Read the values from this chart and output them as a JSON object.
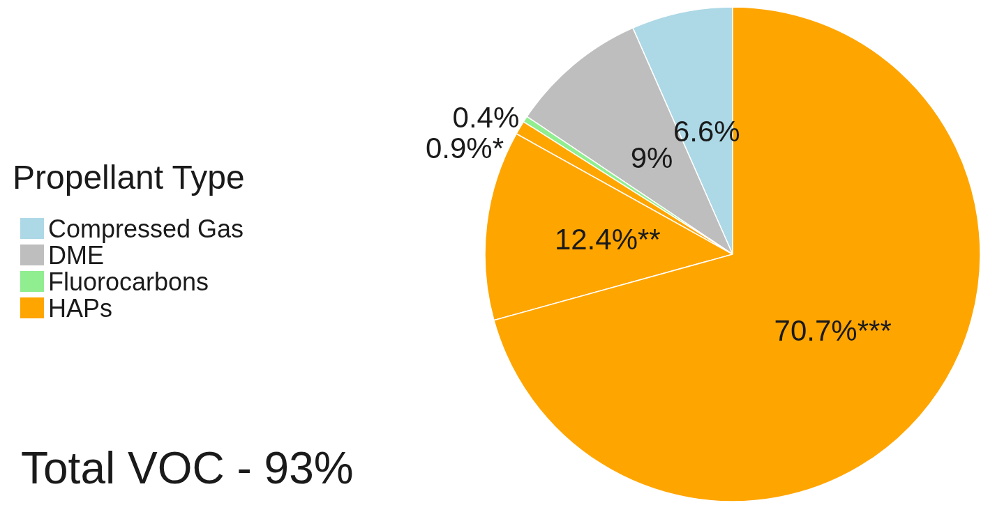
{
  "chart_data": {
    "type": "pie",
    "categories": [
      "Compressed Gas",
      "DME",
      "Fluorocarbons",
      "HAPs",
      null,
      null
    ],
    "values": [
      6.6,
      9,
      0.4,
      0.9,
      12.4,
      70.7
    ],
    "colors": [
      "#add8e6",
      "#bebebe",
      "#90ee90",
      "#ffa500",
      "#ffa500",
      "#ffa500"
    ],
    "value_labels": [
      "6.6%",
      "9%",
      "0.4%",
      "0.9%*",
      "12.4%**",
      "70.7%***"
    ],
    "legend_title": "Propellant Type",
    "legend": "left",
    "annotations": [
      "Total VOC - 93%"
    ]
  }
}
